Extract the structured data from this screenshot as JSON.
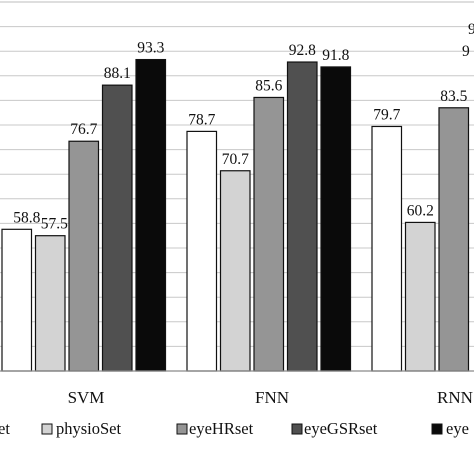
{
  "chart_data": {
    "type": "bar",
    "categories": [
      "SVM",
      "FNN",
      "RNN"
    ],
    "series": [
      {
        "name": "",
        "color": "#ffffff",
        "values": [
          58.8,
          78.7,
          79.7
        ]
      },
      {
        "name": "physioSet",
        "color": "#d3d3d3",
        "values": [
          57.5,
          70.7,
          60.2
        ]
      },
      {
        "name": "eyeHRset",
        "color": "#959595",
        "values": [
          76.7,
          85.6,
          83.5
        ]
      },
      {
        "name": "eyeGSRset",
        "color": "#505050",
        "values": [
          88.1,
          92.8,
          null
        ]
      },
      {
        "name": "",
        "color": "#0a0a0a",
        "values": [
          93.3,
          91.8,
          null
        ]
      }
    ],
    "legend_texts": [
      "et",
      "physioSet",
      "eyeHRset",
      "eyeGSRset",
      "eye"
    ],
    "ylim": [
      30,
      105
    ],
    "grid": true,
    "legend_position": "bottom",
    "title": "",
    "xlabel": "",
    "ylabel": ""
  }
}
